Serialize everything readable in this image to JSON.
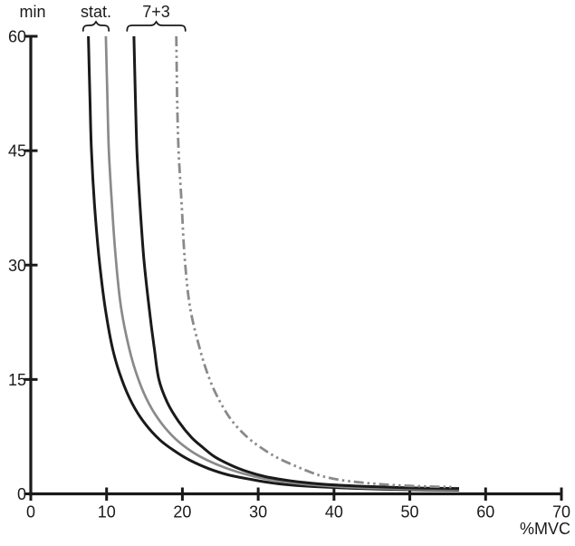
{
  "chart_data": {
    "type": "line",
    "xlabel": "%MVC",
    "ylabel": "min",
    "xlim": [
      0,
      70
    ],
    "ylim": [
      0,
      60
    ],
    "x_ticks": [
      0,
      10,
      20,
      30,
      40,
      50,
      60,
      70
    ],
    "y_ticks": [
      0,
      15,
      30,
      45,
      60
    ],
    "grid": false,
    "legend_position": "none",
    "colors": {
      "black": "#1a1a1a",
      "gray": "#8a8a8a"
    },
    "annotations": [
      {
        "label": "stat.",
        "type": "brace-over-curves",
        "x_from": 6.9,
        "x_to": 10.3,
        "covers": [
          "static-black",
          "static-gray"
        ]
      },
      {
        "label": "7+3",
        "type": "brace-over-curves",
        "x_from": 12.7,
        "x_to": 20.4,
        "covers": [
          "seven-plus-three-black",
          "seven-plus-three-gray-dashdot"
        ]
      }
    ],
    "series": [
      {
        "id": "static-black",
        "name": "stat. endurance curve (black solid)",
        "color": "#1a1a1a",
        "style": "solid",
        "width": 3,
        "points": [
          [
            7.6,
            60
          ],
          [
            7.8,
            52
          ],
          [
            8.0,
            45
          ],
          [
            8.4,
            38
          ],
          [
            9.0,
            31
          ],
          [
            9.8,
            24.5
          ],
          [
            10.8,
            19
          ],
          [
            12.0,
            15
          ],
          [
            13.4,
            11.8
          ],
          [
            15.0,
            9.3
          ],
          [
            17.0,
            7.1
          ],
          [
            19.0,
            5.6
          ],
          [
            21.0,
            4.4
          ],
          [
            23.5,
            3.3
          ],
          [
            26.0,
            2.5
          ],
          [
            29.0,
            1.9
          ],
          [
            32.0,
            1.4
          ],
          [
            35.0,
            1.1
          ],
          [
            38.0,
            0.92
          ],
          [
            42.0,
            0.75
          ],
          [
            46.0,
            0.62
          ],
          [
            50.0,
            0.55
          ],
          [
            53.0,
            0.5
          ],
          [
            56.5,
            0.48
          ]
        ]
      },
      {
        "id": "static-gray",
        "name": "stat. endurance curve (gray solid)",
        "color": "#8a8a8a",
        "style": "solid",
        "width": 2.7,
        "points": [
          [
            9.9,
            60
          ],
          [
            10.1,
            52
          ],
          [
            10.3,
            45
          ],
          [
            10.7,
            38
          ],
          [
            11.2,
            31
          ],
          [
            11.9,
            24.5
          ],
          [
            13.0,
            19
          ],
          [
            14.2,
            15
          ],
          [
            15.6,
            11.8
          ],
          [
            17.2,
            9.3
          ],
          [
            19.2,
            7.1
          ],
          [
            21.3,
            5.5
          ],
          [
            23.3,
            4.4
          ],
          [
            25.7,
            3.4
          ],
          [
            28.2,
            2.6
          ],
          [
            31.0,
            1.95
          ],
          [
            34.0,
            1.5
          ],
          [
            37.5,
            1.15
          ],
          [
            41.0,
            0.92
          ],
          [
            45.0,
            0.75
          ],
          [
            49.0,
            0.65
          ],
          [
            53.0,
            0.58
          ],
          [
            56.5,
            0.55
          ]
        ]
      },
      {
        "id": "seven-plus-three-black",
        "name": "7+3 endurance curve (black solid)",
        "color": "#1a1a1a",
        "style": "solid",
        "width": 3,
        "points": [
          [
            13.6,
            60
          ],
          [
            13.8,
            52
          ],
          [
            14.0,
            45
          ],
          [
            14.4,
            38
          ],
          [
            14.9,
            31
          ],
          [
            15.6,
            24.5
          ],
          [
            16.3,
            19
          ],
          [
            16.9,
            15
          ],
          [
            18.0,
            12
          ],
          [
            19.5,
            9.5
          ],
          [
            21.2,
            7.4
          ],
          [
            22.8,
            6.0
          ],
          [
            24.2,
            4.9
          ],
          [
            26.3,
            3.8
          ],
          [
            28.6,
            2.9
          ],
          [
            31.0,
            2.25
          ],
          [
            34.0,
            1.75
          ],
          [
            37.0,
            1.4
          ],
          [
            40.0,
            1.18
          ],
          [
            44.0,
            0.98
          ],
          [
            48.0,
            0.85
          ],
          [
            52.0,
            0.75
          ],
          [
            56.5,
            0.7
          ]
        ]
      },
      {
        "id": "seven-plus-three-gray-dashdot",
        "name": "7+3 endurance curve (gray dash-dot-dot)",
        "color": "#8a8a8a",
        "style": "dash-dot-dot",
        "width": 2.8,
        "points": [
          [
            19.2,
            60
          ],
          [
            19.3,
            52
          ],
          [
            19.5,
            45
          ],
          [
            19.9,
            38
          ],
          [
            20.3,
            31
          ],
          [
            21.0,
            24.5
          ],
          [
            22.3,
            19
          ],
          [
            23.6,
            15
          ],
          [
            25.0,
            12
          ],
          [
            26.6,
            9.5
          ],
          [
            28.6,
            7.4
          ],
          [
            30.6,
            5.9
          ],
          [
            32.6,
            4.7
          ],
          [
            34.8,
            3.7
          ],
          [
            36.5,
            3.0
          ],
          [
            38.5,
            2.3
          ],
          [
            41.0,
            1.8
          ],
          [
            44.0,
            1.45
          ],
          [
            47.0,
            1.2
          ],
          [
            50.0,
            1.05
          ],
          [
            53.0,
            0.95
          ],
          [
            56.0,
            0.88
          ]
        ]
      }
    ]
  }
}
